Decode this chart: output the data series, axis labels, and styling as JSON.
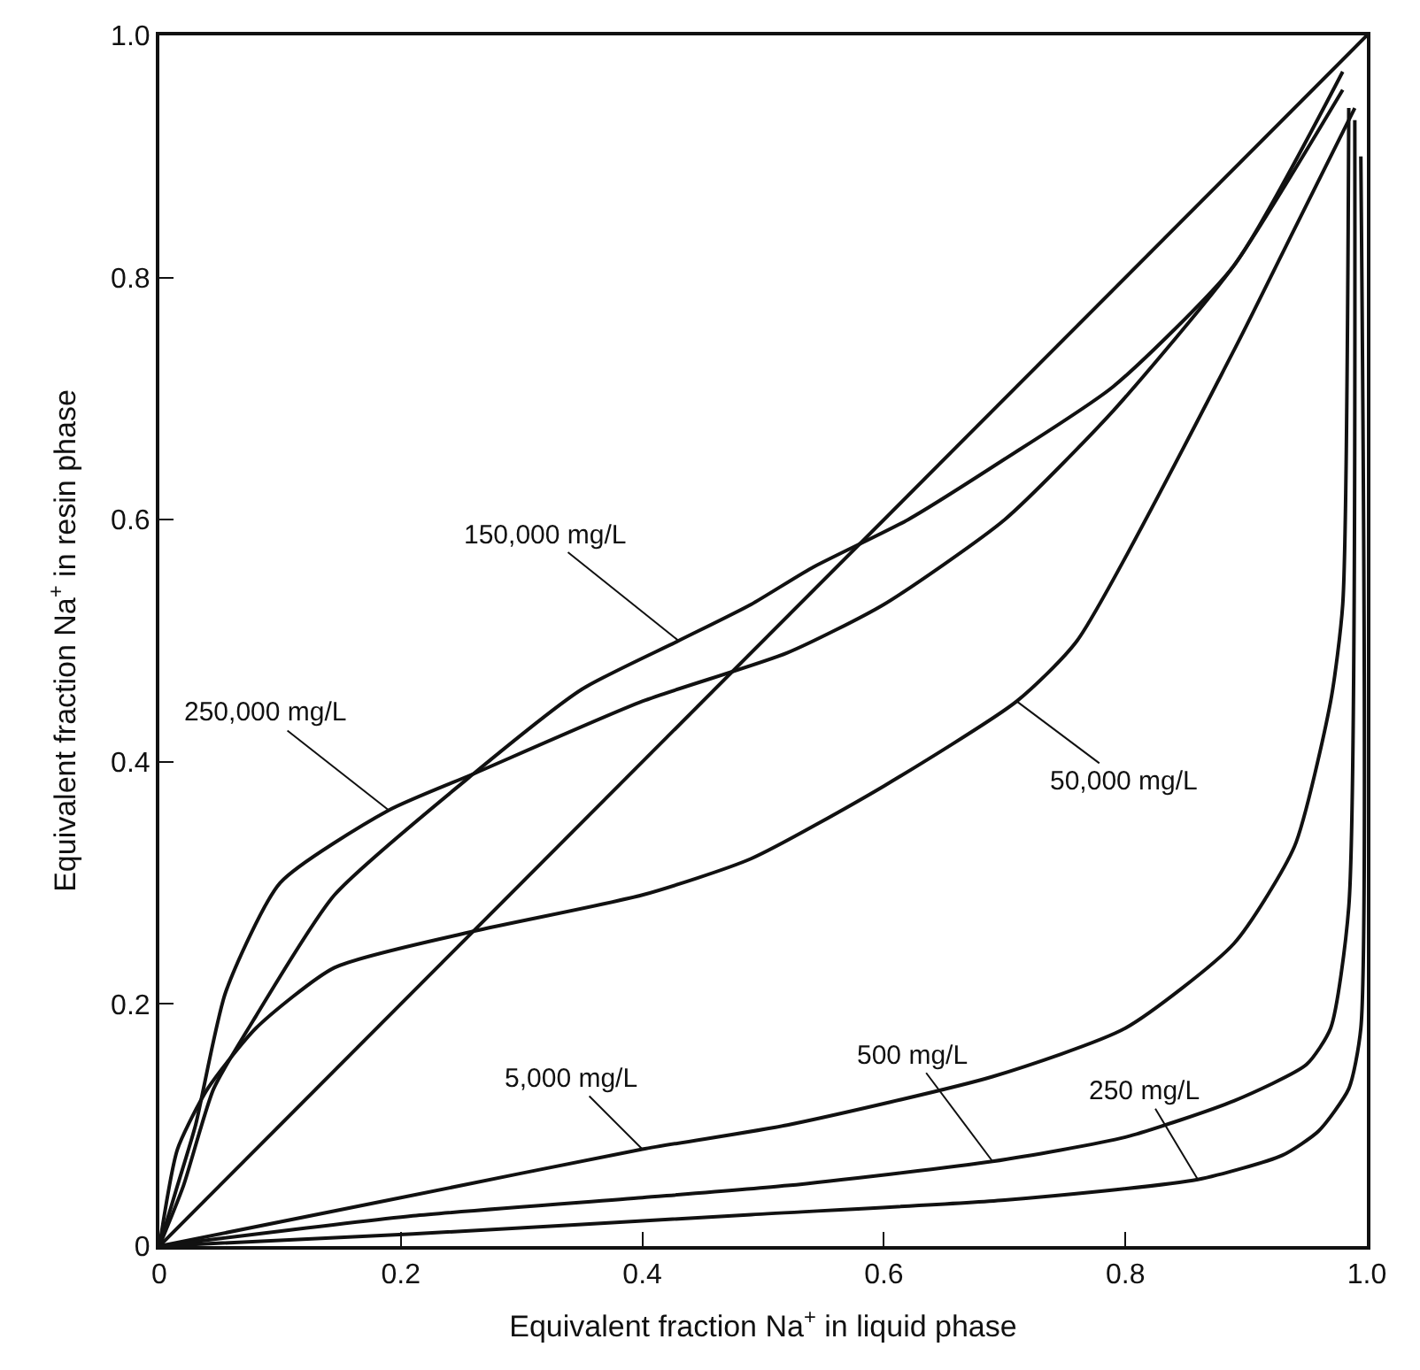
{
  "chart_data": {
    "type": "line",
    "xlabel": "Equivalent fraction Na$^{+}$ in liquid phase",
    "ylabel": "Equivalent fraction Na$^{+}$ in resin phase",
    "xlim": [
      0,
      1
    ],
    "ylim": [
      0,
      1
    ],
    "xticks": [
      0,
      0.2,
      0.4,
      0.6,
      0.8,
      {
        "value": 1,
        "label": "1.0"
      }
    ],
    "yticks": [
      0,
      0.2,
      0.4,
      0.6,
      0.8,
      {
        "value": 1,
        "label": "1.0"
      }
    ],
    "marker": "none",
    "line_style": "solid",
    "series": [
      {
        "color": "#111111",
        "x": [
          0,
          1
        ],
        "values": [
          0,
          1
        ]
      },
      {
        "color": "#111111",
        "x": [
          0,
          0.015,
          0.03,
          0.055,
          0.1,
          0.19,
          0.26,
          0.4,
          0.52,
          0.6,
          0.7,
          0.79,
          0.89,
          0.98
        ],
        "values": [
          0,
          0.05,
          0.1,
          0.21,
          0.3,
          0.36,
          0.39,
          0.45,
          0.49,
          0.53,
          0.6,
          0.69,
          0.81,
          0.955
        ]
      },
      {
        "color": "#111111",
        "x": [
          0,
          0.02,
          0.045,
          0.08,
          0.145,
          0.26,
          0.35,
          0.43,
          0.49,
          0.54,
          0.62,
          0.7,
          0.79,
          0.89,
          0.98
        ],
        "values": [
          0,
          0.05,
          0.13,
          0.19,
          0.29,
          0.39,
          0.46,
          0.5,
          0.53,
          0.56,
          0.6,
          0.65,
          0.71,
          0.81,
          0.97
        ]
      },
      {
        "color": "#111111",
        "x": [
          0,
          0.015,
          0.04,
          0.08,
          0.145,
          0.26,
          0.4,
          0.49,
          0.6,
          0.71,
          0.76,
          0.89,
          0.94,
          0.99
        ],
        "values": [
          0,
          0.08,
          0.13,
          0.18,
          0.23,
          0.26,
          0.29,
          0.32,
          0.38,
          0.45,
          0.5,
          0.74,
          0.84,
          0.94
        ]
      },
      {
        "color": "#111111",
        "x": [
          0,
          0.2,
          0.4,
          0.52,
          0.69,
          0.8,
          0.89,
          0.94,
          0.97,
          0.98,
          0.985
        ],
        "values": [
          0,
          0.04,
          0.08,
          0.1,
          0.14,
          0.18,
          0.25,
          0.33,
          0.45,
          0.53,
          0.94
        ]
      },
      {
        "color": "#111111",
        "x": [
          0,
          0.21,
          0.4,
          0.52,
          0.69,
          0.8,
          0.89,
          0.95,
          0.97,
          0.985,
          0.99
        ],
        "values": [
          0,
          0.025,
          0.04,
          0.05,
          0.07,
          0.09,
          0.12,
          0.15,
          0.18,
          0.28,
          0.93
        ]
      },
      {
        "color": "#111111",
        "x": [
          0,
          0.21,
          0.49,
          0.7,
          0.86,
          0.93,
          0.96,
          0.985,
          0.995,
          0.995
        ],
        "values": [
          0,
          0.01,
          0.026,
          0.038,
          0.055,
          0.075,
          0.095,
          0.13,
          0.18,
          0.9
        ]
      }
    ],
    "annotations": [
      {
        "text": "150,000 mg/L",
        "x": 0.43,
        "y": 0.5
      },
      {
        "text": "250,000 mg/L",
        "x": 0.19,
        "y": 0.36
      },
      {
        "text": "50,000 mg/L",
        "x": 0.71,
        "y": 0.45
      },
      {
        "text": "5,000 mg/L",
        "x": 0.4,
        "y": 0.08
      },
      {
        "text": "500 mg/L",
        "x": 0.69,
        "y": 0.07
      },
      {
        "text": "250 mg/L",
        "x": 0.86,
        "y": 0.055
      }
    ]
  }
}
